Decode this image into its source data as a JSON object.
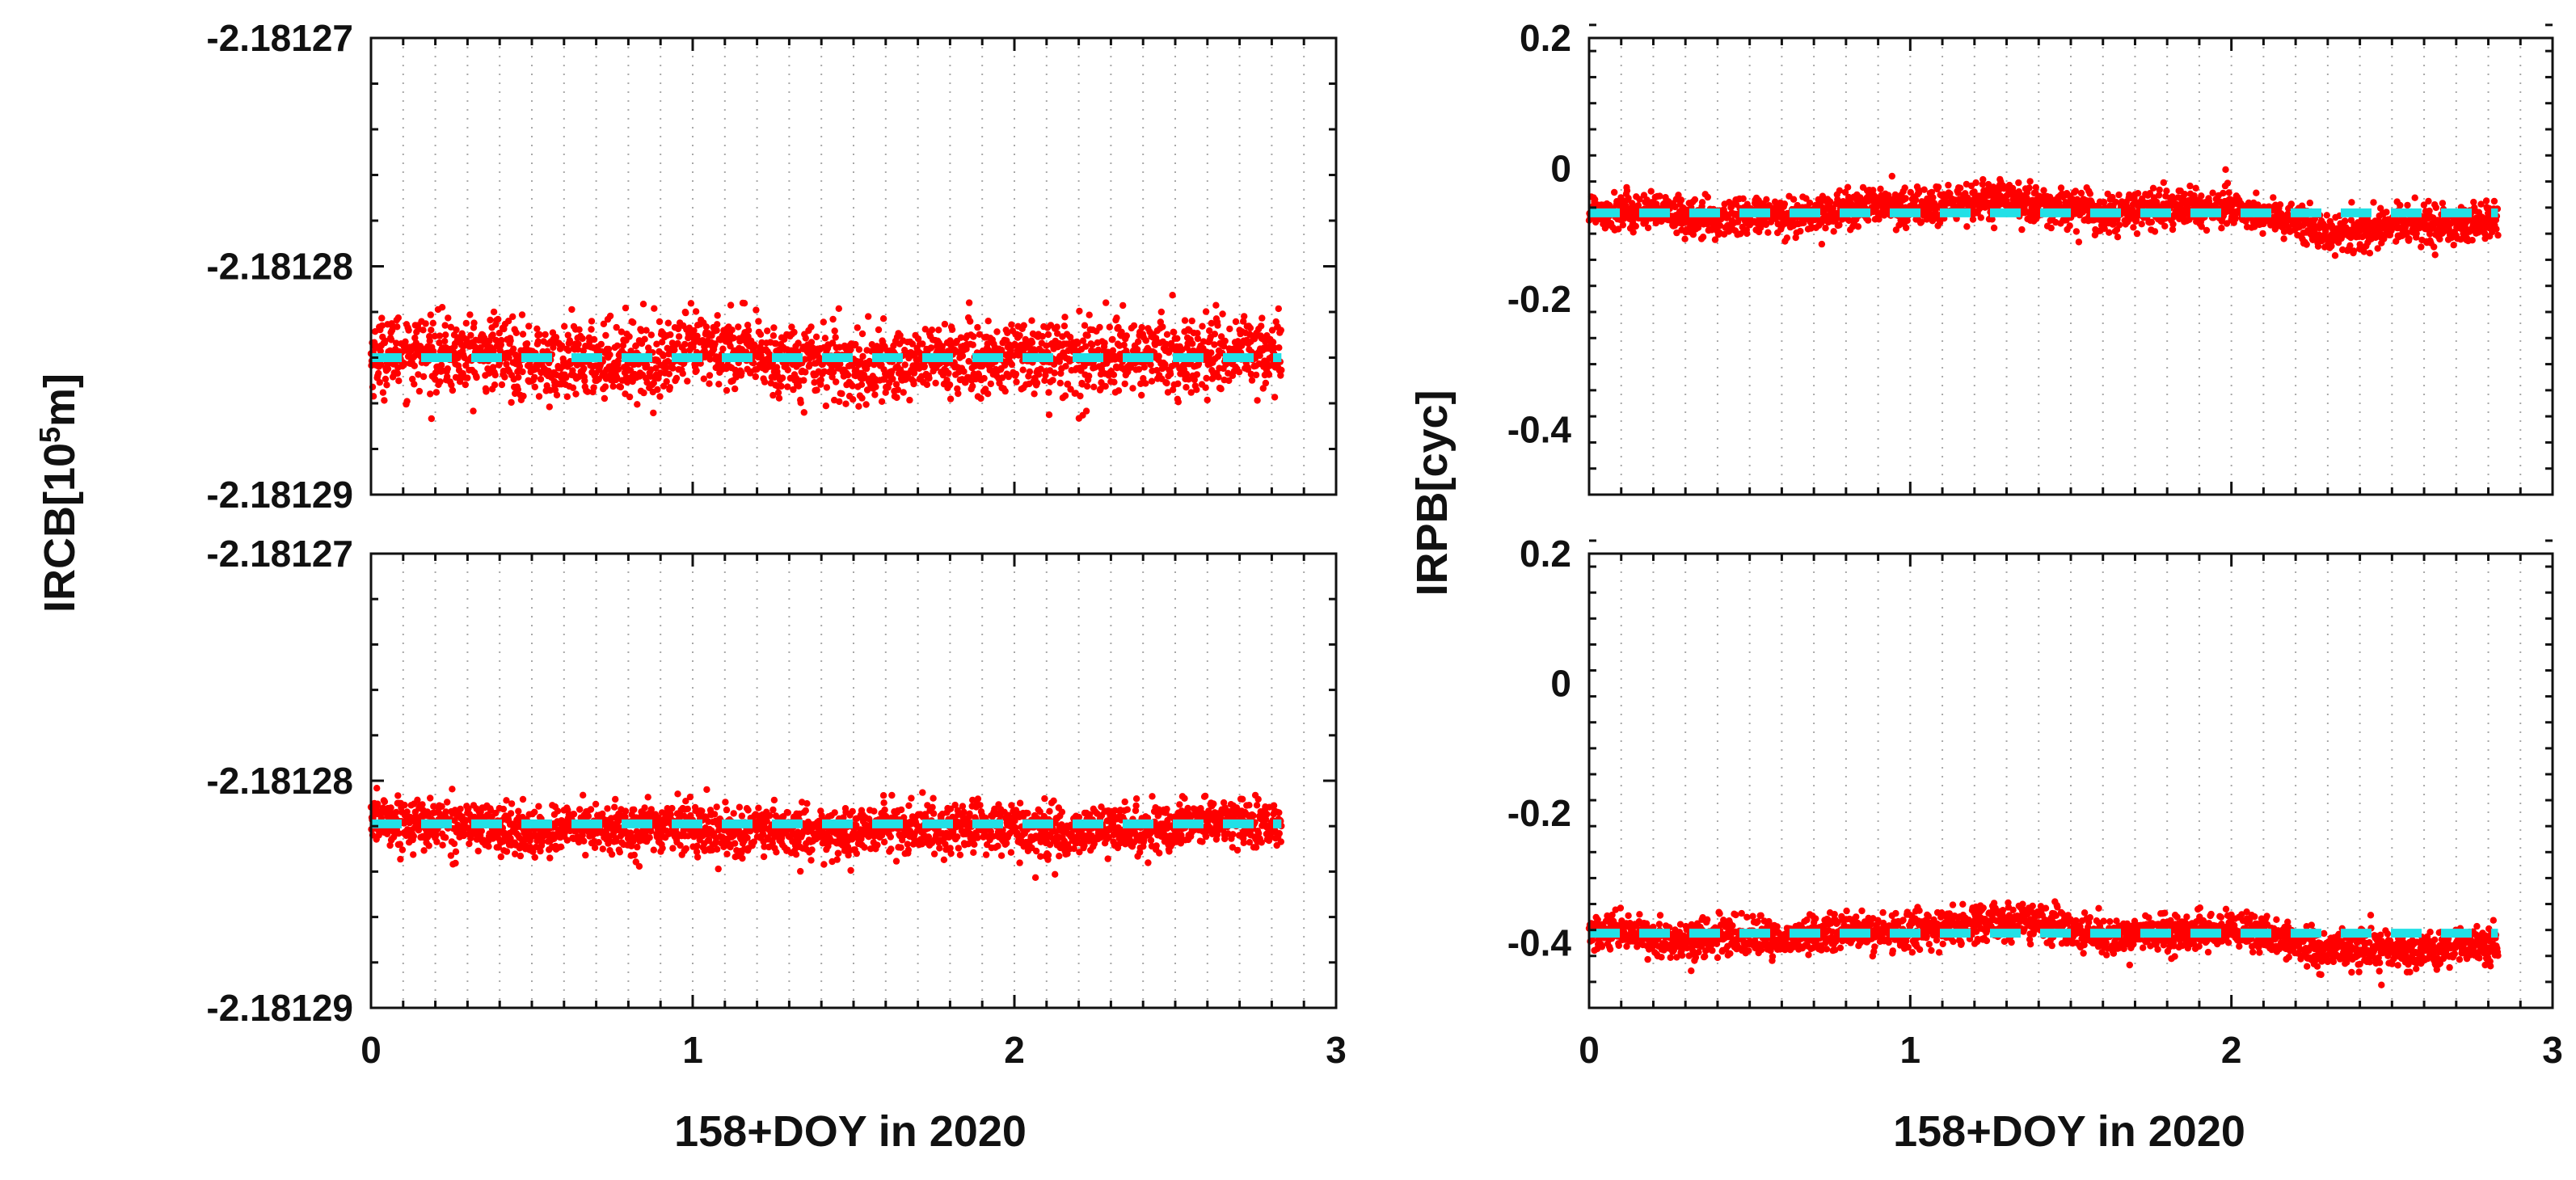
{
  "figure": {
    "xlabel_left": "158+DOY in 2020",
    "xlabel_right": "158+DOY in 2020",
    "ylabel_left": {
      "prefix": "IRCB[10",
      "superscript": "5",
      "suffix": "m]"
    },
    "ylabel_right": "IRPB[cyc]"
  },
  "colors": {
    "points": "#ff0000",
    "mean_line": "#22e0e6",
    "grid": "#a8a8a8",
    "axis": "#111111"
  },
  "chart_data": [
    {
      "id": "ircb-top",
      "type": "scatter",
      "xlim": [
        0,
        3
      ],
      "ylim": [
        -2.18129,
        -2.18127
      ],
      "xticks": [
        0,
        1,
        2,
        3
      ],
      "yticks": [
        -2.18129,
        -2.18128,
        -2.18127
      ],
      "xtick_labels": [],
      "ytick_labels": [
        "-2.18129",
        "-2.18128",
        "-2.18127"
      ],
      "series": [
        {
          "name": "IRCB",
          "x_range": [
            0,
            2.83
          ],
          "center": -2.181284,
          "spread": 9e-07,
          "drift": [
            [
              0,
              0
            ],
            [
              0.9,
              -0.0
            ],
            [
              1.0,
              1e-07
            ],
            [
              2.0,
              -3e-07
            ],
            [
              2.3,
              3e-07
            ],
            [
              2.83,
              0
            ]
          ]
        }
      ],
      "mean_line": -2.181284
    },
    {
      "id": "ircb-bottom",
      "type": "scatter",
      "xlim": [
        0,
        3
      ],
      "ylim": [
        -2.18129,
        -2.18127
      ],
      "xticks": [
        0,
        1,
        2,
        3
      ],
      "yticks": [
        -2.18129,
        -2.18128,
        -2.18127
      ],
      "xtick_labels": [
        "0",
        "1",
        "2",
        "3"
      ],
      "ytick_labels": [
        "-2.18129",
        "-2.18128",
        "-2.18127"
      ],
      "series": [
        {
          "name": "IRCB",
          "x_range": [
            0,
            2.83
          ],
          "center": -2.1812819,
          "spread": 6e-07,
          "drift": [
            [
              0,
              0
            ],
            [
              1.0,
              -3e-07
            ],
            [
              2.0,
              -3e-07
            ],
            [
              2.83,
              0
            ]
          ]
        }
      ],
      "mean_line": -2.1812819
    },
    {
      "id": "irpb-top",
      "type": "scatter",
      "xlim": [
        0,
        3
      ],
      "ylim": [
        -0.5,
        0.2
      ],
      "xticks": [
        0,
        1,
        2,
        3
      ],
      "yticks": [
        -0.4,
        -0.2,
        0,
        0.2
      ],
      "xtick_labels": [],
      "ytick_labels": [
        "-0.4",
        "-0.2",
        "0",
        "0.2"
      ],
      "series": [
        {
          "name": "IRPB",
          "x_range": [
            0,
            2.83
          ],
          "center": -0.065,
          "spread": 0.016,
          "drift": [
            [
              0,
              0
            ],
            [
              0.6,
              -0.01
            ],
            [
              1.3,
              0.02
            ],
            [
              1.6,
              -0.01
            ],
            [
              2.0,
              0.01
            ],
            [
              2.35,
              -0.035
            ],
            [
              2.83,
              -0.015
            ]
          ]
        }
      ],
      "mean_line": -0.068
    },
    {
      "id": "irpb-bottom",
      "type": "scatter",
      "xlim": [
        0,
        3
      ],
      "ylim": [
        -0.5,
        0.2
      ],
      "xticks": [
        0,
        1,
        2,
        3
      ],
      "yticks": [
        -0.4,
        -0.2,
        0,
        0.2
      ],
      "xtick_labels": [
        "0",
        "1",
        "2",
        "3"
      ],
      "ytick_labels": [
        "-0.4",
        "-0.2",
        "0",
        "0.2"
      ],
      "series": [
        {
          "name": "IRPB",
          "x_range": [
            0,
            2.83
          ],
          "center": -0.385,
          "spread": 0.016,
          "drift": [
            [
              0,
              0
            ],
            [
              0.6,
              -0.01
            ],
            [
              1.3,
              0.02
            ],
            [
              1.6,
              -0.01
            ],
            [
              2.0,
              0.01
            ],
            [
              2.35,
              -0.035
            ],
            [
              2.83,
              -0.015
            ]
          ]
        }
      ],
      "mean_line": -0.385
    }
  ]
}
